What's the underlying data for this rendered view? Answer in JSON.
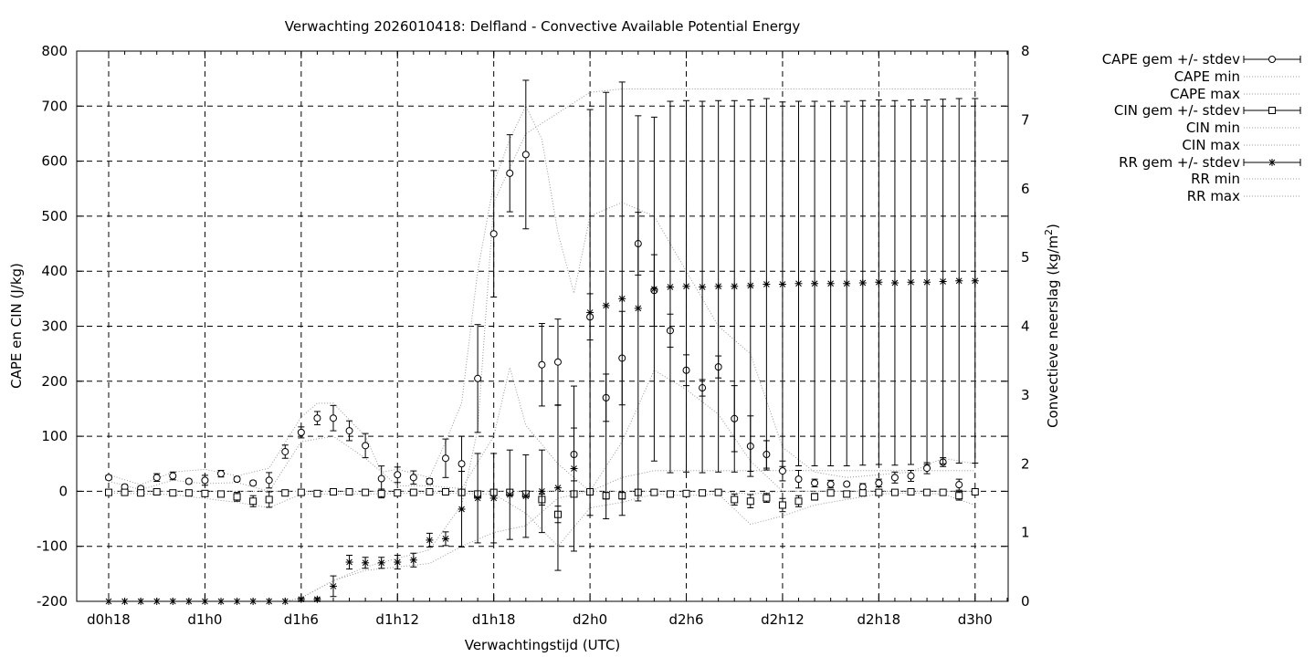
{
  "chart_data": {
    "type": "line",
    "title": "Verwachting 2026010418: Delfland - Convective Available Potential Energy",
    "xlabel": "Verwachtingstijd (UTC)",
    "ylabel": "CAPE en CIN (J/kg)",
    "y2label": "Convectieve neerslag (kg/m",
    "y2label_sup": "2",
    "y2label_end": ")",
    "xlim": [
      0,
      57
    ],
    "ylim": [
      -200,
      800
    ],
    "y2lim": [
      0,
      8
    ],
    "grid": true,
    "legend_position": "outside-right",
    "x_ticks": [
      {
        "x": 0,
        "label": "d0h18"
      },
      {
        "x": 6,
        "label": "d1h0"
      },
      {
        "x": 12,
        "label": "d1h6"
      },
      {
        "x": 18,
        "label": "d1h12"
      },
      {
        "x": 24,
        "label": "d1h18"
      },
      {
        "x": 30,
        "label": "d2h0"
      },
      {
        "x": 36,
        "label": "d2h6"
      },
      {
        "x": 42,
        "label": "d2h12"
      },
      {
        "x": 48,
        "label": "d2h18"
      },
      {
        "x": 54,
        "label": "d3h0"
      }
    ],
    "y_ticks": [
      -200,
      -100,
      0,
      100,
      200,
      300,
      400,
      500,
      600,
      700,
      800
    ],
    "y2_ticks": [
      0,
      1,
      2,
      3,
      4,
      5,
      6,
      7,
      8
    ],
    "series": [
      {
        "name": "CAPE gem +/- stdev",
        "axis": "y",
        "style": "errorbars",
        "marker": "circle",
        "x": [
          0,
          1,
          2,
          3,
          4,
          5,
          6,
          7,
          8,
          9,
          10,
          11,
          12,
          13,
          14,
          15,
          16,
          17,
          18,
          19,
          20,
          21,
          22,
          23,
          24,
          25,
          26,
          27,
          28,
          29,
          30,
          31,
          32,
          33,
          34,
          35,
          36,
          37,
          38,
          39,
          40,
          41,
          42,
          43,
          44,
          45,
          46,
          47,
          48,
          49,
          50,
          51,
          52,
          53
        ],
        "y": [
          25,
          8,
          5,
          25,
          28,
          18,
          20,
          32,
          22,
          15,
          20,
          72,
          107,
          133,
          133,
          110,
          83,
          23,
          30,
          25,
          18,
          60,
          50,
          205,
          468,
          578,
          612,
          230,
          235,
          67,
          317,
          170,
          242,
          450,
          365,
          292,
          220,
          188,
          226,
          132,
          82,
          67,
          37,
          22,
          15,
          13,
          13,
          8,
          15,
          25,
          28,
          42,
          53,
          12
        ],
        "err": [
          4,
          4,
          4,
          7,
          7,
          4,
          9,
          6,
          4,
          4,
          14,
          12,
          10,
          12,
          23,
          18,
          22,
          23,
          14,
          12,
          5,
          35,
          50,
          98,
          115,
          70,
          135,
          75,
          78,
          48,
          42,
          43,
          85,
          57,
          65,
          30,
          28,
          15,
          20,
          60,
          55,
          25,
          18,
          16,
          7,
          7,
          3,
          6,
          7,
          10,
          10,
          10,
          8,
          10
        ]
      },
      {
        "name": "CAPE min",
        "axis": "y",
        "style": "dotted",
        "x": [
          0,
          2,
          4,
          6,
          8,
          10,
          12,
          14,
          16,
          18,
          20,
          22,
          24,
          25,
          26,
          28,
          30,
          32,
          34,
          36,
          38,
          40,
          42,
          44,
          46,
          48,
          50,
          52,
          54
        ],
        "y": [
          18,
          3,
          20,
          14,
          16,
          0,
          90,
          100,
          60,
          10,
          10,
          5,
          100,
          225,
          120,
          50,
          0,
          90,
          220,
          185,
          140,
          55,
          0,
          0,
          0,
          0,
          0,
          0,
          0
        ]
      },
      {
        "name": "CAPE max",
        "axis": "y",
        "style": "dotted",
        "x": [
          0,
          2,
          4,
          6,
          8,
          10,
          12,
          13,
          14,
          16,
          17,
          18,
          20,
          21,
          22,
          23,
          24,
          25,
          26,
          27,
          28,
          29,
          30,
          32,
          34,
          36,
          38,
          40,
          42,
          44,
          46,
          48,
          50,
          52,
          54
        ],
        "y": [
          30,
          12,
          35,
          40,
          28,
          42,
          135,
          160,
          160,
          100,
          35,
          40,
          25,
          90,
          160,
          400,
          560,
          640,
          700,
          640,
          470,
          360,
          500,
          525,
          500,
          400,
          300,
          250,
          80,
          35,
          25,
          30,
          35,
          60,
          50
        ]
      },
      {
        "name": "CIN gem +/- stdev",
        "axis": "y",
        "style": "errorbars",
        "marker": "square",
        "x": [
          0,
          1,
          2,
          3,
          4,
          5,
          6,
          7,
          8,
          9,
          10,
          11,
          12,
          13,
          14,
          15,
          16,
          17,
          18,
          19,
          20,
          21,
          22,
          23,
          24,
          25,
          26,
          27,
          28,
          29,
          30,
          31,
          32,
          33,
          34,
          35,
          36,
          37,
          38,
          39,
          40,
          41,
          42,
          43,
          44,
          45,
          46,
          47,
          48,
          49,
          50,
          51,
          52,
          53,
          54
        ],
        "y": [
          -2,
          -2,
          -3,
          -1,
          -3,
          -3,
          -4,
          -5,
          -10,
          -18,
          -15,
          -3,
          -2,
          -4,
          -1,
          -1,
          -2,
          -4,
          -3,
          -2,
          -1,
          -1,
          -2,
          -5,
          -2,
          -2,
          -5,
          -15,
          -42,
          -5,
          -1,
          -8,
          -8,
          -2,
          -2,
          -5,
          -4,
          -3,
          -2,
          -15,
          -18,
          -12,
          -25,
          -18,
          -10,
          -3,
          -5,
          -3,
          -2,
          -2,
          -1,
          -2,
          -2,
          -8,
          -1
        ],
        "err": [
          2,
          2,
          4,
          2,
          3,
          2,
          3,
          3,
          8,
          10,
          14,
          2,
          2,
          2,
          2,
          2,
          2,
          8,
          2,
          2,
          2,
          2,
          2,
          4,
          2,
          2,
          4,
          10,
          15,
          4,
          2,
          6,
          6,
          2,
          2,
          3,
          3,
          2,
          2,
          10,
          12,
          8,
          12,
          10,
          6,
          3,
          4,
          3,
          2,
          2,
          2,
          2,
          2,
          8,
          2
        ]
      },
      {
        "name": "CIN min",
        "axis": "y",
        "style": "dotted",
        "x": [
          0,
          4,
          8,
          10,
          12,
          16,
          20,
          24,
          26,
          28,
          30,
          32,
          34,
          36,
          38,
          40,
          42,
          44,
          46,
          48,
          50,
          52,
          54
        ],
        "y": [
          -3,
          -6,
          -20,
          -30,
          -5,
          -5,
          -3,
          -5,
          -40,
          -100,
          -30,
          -20,
          -5,
          -8,
          -5,
          -60,
          -45,
          -25,
          -15,
          -5,
          -3,
          -5,
          -25
        ]
      },
      {
        "name": "CIN max",
        "axis": "y",
        "style": "dotted",
        "x": [
          0,
          10,
          20,
          24,
          26,
          28,
          30,
          32,
          34,
          36,
          38,
          40,
          42,
          44,
          48,
          50,
          52,
          54
        ],
        "y": [
          0,
          0,
          0,
          0,
          0,
          0,
          0,
          0,
          0,
          0,
          0,
          -5,
          0,
          0,
          0,
          0,
          0,
          0
        ]
      },
      {
        "name": "RR gem +/- stdev",
        "axis": "y2",
        "style": "errorbars",
        "marker": "asterisk",
        "x": [
          0,
          1,
          2,
          3,
          4,
          5,
          6,
          7,
          8,
          9,
          10,
          11,
          12,
          13,
          14,
          15,
          16,
          17,
          18,
          19,
          20,
          21,
          22,
          23,
          24,
          25,
          26,
          27,
          28,
          29,
          30,
          31,
          32,
          33,
          34,
          35,
          36,
          37,
          38,
          39,
          40,
          41,
          42,
          43,
          44,
          45,
          46,
          47,
          48,
          49,
          50,
          51,
          52,
          53,
          54
        ],
        "y": [
          0,
          0,
          0,
          0,
          0,
          0,
          0,
          0,
          0,
          0,
          0,
          0,
          0.03,
          0.03,
          0.22,
          0.57,
          0.56,
          0.56,
          0.57,
          0.6,
          0.89,
          0.91,
          1.34,
          1.5,
          1.5,
          1.55,
          1.53,
          1.6,
          1.65,
          1.93,
          4.2,
          4.3,
          4.4,
          4.26,
          4.54,
          4.57,
          4.58,
          4.57,
          4.58,
          4.58,
          4.59,
          4.61,
          4.61,
          4.62,
          4.62,
          4.62,
          4.62,
          4.63,
          4.64,
          4.63,
          4.64,
          4.64,
          4.65,
          4.66,
          4.66
        ],
        "err": [
          0,
          0,
          0,
          0,
          0,
          0,
          0,
          0,
          0,
          0,
          0,
          0,
          0.02,
          0.02,
          0.15,
          0.1,
          0.08,
          0.08,
          0.1,
          0.1,
          0.1,
          0.1,
          0.55,
          0.65,
          0.65,
          0.65,
          0.6,
          0.6,
          1.2,
          1.2,
          2.95,
          3.1,
          3.15,
          2.8,
          2.5,
          2.7,
          2.7,
          2.7,
          2.7,
          2.7,
          2.7,
          2.7,
          2.65,
          2.65,
          2.65,
          2.65,
          2.65,
          2.65,
          2.65,
          2.65,
          2.65,
          2.65,
          2.65,
          2.65,
          2.65
        ]
      },
      {
        "name": "RR min",
        "axis": "y2",
        "style": "dotted",
        "x": [
          0,
          11,
          12,
          14,
          16,
          20,
          22,
          24,
          26,
          28,
          30,
          32,
          34,
          36,
          40,
          44,
          48,
          52,
          54
        ],
        "y": [
          0,
          0,
          0.05,
          0.3,
          0.45,
          0.55,
          0.8,
          1.0,
          1.1,
          1.5,
          1.6,
          1.8,
          1.9,
          1.9,
          1.9,
          1.9,
          1.9,
          1.9,
          1.9
        ]
      },
      {
        "name": "RR max",
        "axis": "y2",
        "style": "dotted",
        "x": [
          0,
          11,
          12,
          14,
          16,
          20,
          22,
          23,
          24,
          26,
          28,
          30,
          32,
          34,
          36,
          40,
          44,
          48,
          52,
          54
        ],
        "y": [
          0,
          0,
          0.05,
          0.3,
          0.5,
          0.75,
          1.4,
          2.5,
          5.8,
          6.8,
          7.1,
          7.4,
          7.45,
          7.45,
          7.45,
          7.45,
          7.45,
          7.45,
          7.45,
          7.45
        ]
      }
    ]
  }
}
